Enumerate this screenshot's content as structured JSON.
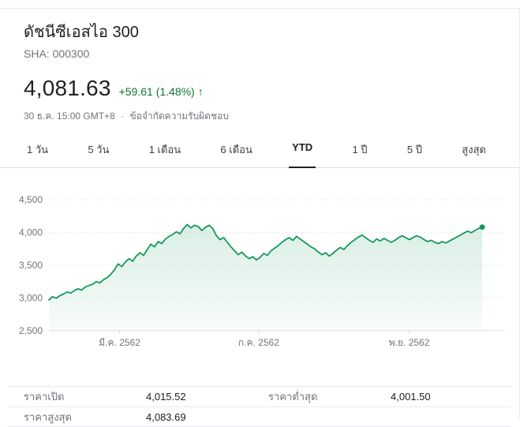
{
  "header": {
    "title": "ดัชนีซีเอสไอ 300",
    "exchange": "SHA: 000300",
    "price": "4,081.63",
    "change": "+59.61 (1.48%)",
    "change_arrow": "↑",
    "timestamp": "30 ธ.ค. 15:00 GMT+8",
    "separator": "·",
    "disclaimer": "ข้อจำกัดความรับผิดชอบ"
  },
  "colors": {
    "green_text": "#137333",
    "line_green": "#15995c",
    "grid": "#dadce0",
    "axis_text": "#70757a"
  },
  "tabs": [
    {
      "label": "1 วัน",
      "selected": false
    },
    {
      "label": "5 วัน",
      "selected": false
    },
    {
      "label": "1 เดือน",
      "selected": false
    },
    {
      "label": "6 เดือน",
      "selected": false
    },
    {
      "label": "YTD",
      "selected": true
    },
    {
      "label": "1 ปี",
      "selected": false
    },
    {
      "label": "5 ปี",
      "selected": false
    },
    {
      "label": "สูงสุด",
      "selected": false
    }
  ],
  "chart_data": {
    "type": "area",
    "title": "ดัชนีซีเอสไอ 300 YTD",
    "ylim": [
      2500,
      4500
    ],
    "yticks": [
      2500,
      3000,
      3500,
      4000,
      4500
    ],
    "ytick_labels": [
      "2,500",
      "3,000",
      "3,500",
      "4,000",
      "4,500"
    ],
    "xticks": [
      {
        "pos": 0.155,
        "label": "มี.ค. 2562"
      },
      {
        "pos": 0.46,
        "label": "ก.ค. 2562"
      },
      {
        "pos": 0.79,
        "label": "พ.ย. 2562"
      }
    ],
    "grid": true,
    "legend": false,
    "line_color": "#15995c",
    "x_end_fraction": 0.95,
    "values": [
      2969,
      3020,
      2995,
      3035,
      3060,
      3090,
      3075,
      3115,
      3140,
      3120,
      3168,
      3190,
      3210,
      3250,
      3230,
      3280,
      3310,
      3360,
      3430,
      3520,
      3480,
      3550,
      3600,
      3560,
      3640,
      3690,
      3650,
      3740,
      3820,
      3780,
      3860,
      3830,
      3900,
      3940,
      3970,
      4010,
      3980,
      4060,
      4120,
      4070,
      4110,
      4090,
      4030,
      4080,
      4110,
      4060,
      3950,
      3890,
      3920,
      3850,
      3780,
      3720,
      3660,
      3700,
      3640,
      3600,
      3630,
      3580,
      3620,
      3680,
      3650,
      3720,
      3760,
      3800,
      3850,
      3890,
      3920,
      3880,
      3940,
      3900,
      3860,
      3820,
      3780,
      3750,
      3700,
      3660,
      3690,
      3640,
      3680,
      3730,
      3770,
      3740,
      3800,
      3850,
      3890,
      3930,
      3960,
      3920,
      3880,
      3850,
      3900,
      3870,
      3910,
      3880,
      3850,
      3880,
      3920,
      3950,
      3920,
      3890,
      3920,
      3950,
      3930,
      3890,
      3860,
      3880,
      3850,
      3830,
      3860,
      3840,
      3870,
      3900,
      3930,
      3960,
      3990,
      4020,
      3995,
      4030,
      4060,
      4082
    ]
  },
  "stats": {
    "rows": [
      [
        {
          "label": "ราคาเปิด",
          "value": "4,015.52"
        },
        {
          "label": "ราคาต่ำสุด",
          "value": "4,001.50"
        }
      ],
      [
        {
          "label": "ราคาสูงสุด",
          "value": "4,083.69"
        },
        {
          "label": "",
          "value": ""
        }
      ]
    ]
  }
}
